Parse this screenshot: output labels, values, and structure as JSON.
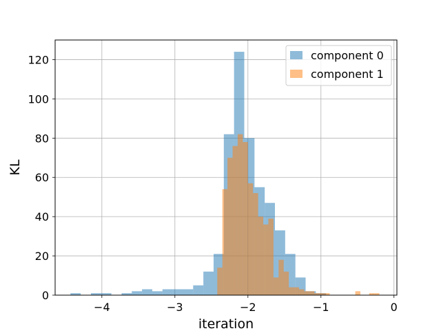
{
  "chart_data": {
    "type": "histogram",
    "xlabel": "iteration",
    "ylabel": "KL",
    "xlim": [
      -4.64,
      0.04
    ],
    "ylim": [
      0,
      130
    ],
    "xticks": [
      -4,
      -3,
      -2,
      -1,
      0
    ],
    "xtick_labels": [
      "−4",
      "−3",
      "−2",
      "−1",
      "0"
    ],
    "yticks": [
      0,
      20,
      40,
      60,
      80,
      100,
      120
    ],
    "grid": true,
    "legend_position": "top-right",
    "series": [
      {
        "name": "component 0",
        "color": "#1f77b4",
        "alpha": 0.5,
        "bins": [
          {
            "x0": -4.43,
            "x1": -4.29,
            "count": 1
          },
          {
            "x0": -4.15,
            "x1": -4.01,
            "count": 1
          },
          {
            "x0": -4.01,
            "x1": -3.87,
            "count": 1
          },
          {
            "x0": -3.73,
            "x1": -3.59,
            "count": 1
          },
          {
            "x0": -3.59,
            "x1": -3.45,
            "count": 2
          },
          {
            "x0": -3.45,
            "x1": -3.31,
            "count": 3
          },
          {
            "x0": -3.31,
            "x1": -3.17,
            "count": 2
          },
          {
            "x0": -3.17,
            "x1": -3.03,
            "count": 3
          },
          {
            "x0": -3.03,
            "x1": -2.89,
            "count": 3
          },
          {
            "x0": -2.89,
            "x1": -2.75,
            "count": 3
          },
          {
            "x0": -2.75,
            "x1": -2.61,
            "count": 5
          },
          {
            "x0": -2.61,
            "x1": -2.47,
            "count": 12
          },
          {
            "x0": -2.47,
            "x1": -2.33,
            "count": 21
          },
          {
            "x0": -2.33,
            "x1": -2.19,
            "count": 82
          },
          {
            "x0": -2.19,
            "x1": -2.05,
            "count": 124
          },
          {
            "x0": -2.05,
            "x1": -1.91,
            "count": 80
          },
          {
            "x0": -1.91,
            "x1": -1.77,
            "count": 55
          },
          {
            "x0": -1.77,
            "x1": -1.63,
            "count": 47
          },
          {
            "x0": -1.63,
            "x1": -1.49,
            "count": 33
          },
          {
            "x0": -1.49,
            "x1": -1.35,
            "count": 21
          },
          {
            "x0": -1.35,
            "x1": -1.21,
            "count": 9
          },
          {
            "x0": -1.21,
            "x1": -1.07,
            "count": 2
          },
          {
            "x0": -1.07,
            "x1": -0.93,
            "count": 1
          }
        ]
      },
      {
        "name": "component 1",
        "color": "#ff7f0e",
        "alpha": 0.5,
        "bins": [
          {
            "x0": -2.42,
            "x1": -2.35,
            "count": 14
          },
          {
            "x0": -2.35,
            "x1": -2.28,
            "count": 54
          },
          {
            "x0": -2.28,
            "x1": -2.21,
            "count": 70
          },
          {
            "x0": -2.21,
            "x1": -2.14,
            "count": 76
          },
          {
            "x0": -2.14,
            "x1": -2.07,
            "count": 82
          },
          {
            "x0": -2.07,
            "x1": -2.0,
            "count": 78
          },
          {
            "x0": -2.0,
            "x1": -1.93,
            "count": 57
          },
          {
            "x0": -1.93,
            "x1": -1.86,
            "count": 52
          },
          {
            "x0": -1.86,
            "x1": -1.79,
            "count": 40
          },
          {
            "x0": -1.79,
            "x1": -1.72,
            "count": 36
          },
          {
            "x0": -1.72,
            "x1": -1.65,
            "count": 39
          },
          {
            "x0": -1.65,
            "x1": -1.58,
            "count": 9
          },
          {
            "x0": -1.58,
            "x1": -1.51,
            "count": 18
          },
          {
            "x0": -1.51,
            "x1": -1.44,
            "count": 12
          },
          {
            "x0": -1.44,
            "x1": -1.37,
            "count": 4
          },
          {
            "x0": -1.37,
            "x1": -1.3,
            "count": 4
          },
          {
            "x0": -1.3,
            "x1": -1.23,
            "count": 3
          },
          {
            "x0": -1.23,
            "x1": -1.16,
            "count": 2
          },
          {
            "x0": -1.16,
            "x1": -1.09,
            "count": 2
          },
          {
            "x0": -1.09,
            "x1": -1.02,
            "count": 1
          },
          {
            "x0": -1.02,
            "x1": -0.95,
            "count": 1
          },
          {
            "x0": -0.95,
            "x1": -0.88,
            "count": 1
          },
          {
            "x0": -0.53,
            "x1": -0.46,
            "count": 2
          },
          {
            "x0": -0.34,
            "x1": -0.27,
            "count": 1
          },
          {
            "x0": -0.27,
            "x1": -0.2,
            "count": 1
          }
        ]
      }
    ]
  }
}
